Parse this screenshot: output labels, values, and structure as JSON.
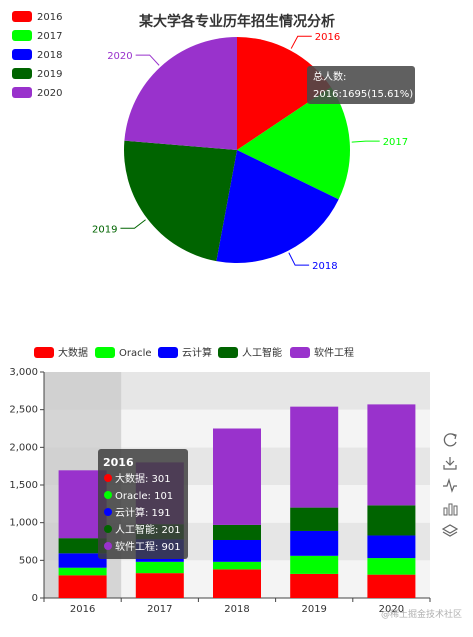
{
  "chart_data": [
    {
      "type": "pie",
      "title": "某大学各专业历年招生情况分析",
      "legend": {
        "placement": "top-left",
        "items": [
          "2016",
          "2017",
          "2018",
          "2019",
          "2020"
        ]
      },
      "slices": [
        {
          "label": "2016",
          "value": 1695,
          "color": "#ff0000"
        },
        {
          "label": "2017",
          "value": 1800,
          "color": "#00ff00"
        },
        {
          "label": "2018",
          "value": 2250,
          "color": "#0000ff"
        },
        {
          "label": "2019",
          "value": 2540,
          "color": "#006400"
        },
        {
          "label": "2020",
          "value": 2570,
          "color": "#9932cc"
        }
      ],
      "tooltip": {
        "title": "总人数:",
        "line": "2016:1695(15.61%)"
      }
    },
    {
      "type": "bar",
      "stacked": true,
      "categories": [
        "2016",
        "2017",
        "2018",
        "2019",
        "2020"
      ],
      "ylim": [
        0,
        3000
      ],
      "yticks": [
        "0",
        "500",
        "1,000",
        "1,500",
        "2,000",
        "2,500",
        "3,000"
      ],
      "grid": "horizontal bands",
      "legend": {
        "placement": "top"
      },
      "series": [
        {
          "name": "大数据",
          "color": "#ff0000",
          "values": [
            301,
            330,
            380,
            320,
            310
          ]
        },
        {
          "name": "Oracle",
          "color": "#00ff00",
          "values": [
            101,
            150,
            100,
            240,
            220
          ]
        },
        {
          "name": "云计算",
          "color": "#0000ff",
          "values": [
            191,
            300,
            290,
            330,
            300
          ]
        },
        {
          "name": "人工智能",
          "color": "#006400",
          "values": [
            201,
            200,
            200,
            310,
            400
          ]
        },
        {
          "name": "软件工程",
          "color": "#9932cc",
          "values": [
            901,
            820,
            1280,
            1340,
            1340
          ]
        }
      ],
      "tooltip": {
        "title": "2016",
        "lines": [
          "大数据: 301",
          "Oracle: 101",
          "云计算: 191",
          "人工智能: 201",
          "软件工程: 901"
        ]
      }
    }
  ],
  "ui": {
    "toolbox_icons": [
      "refresh-icon",
      "download-icon",
      "line-chart-icon",
      "bar-chart-icon",
      "stack-icon"
    ],
    "watermark": "@稀土掘金技术社区"
  }
}
